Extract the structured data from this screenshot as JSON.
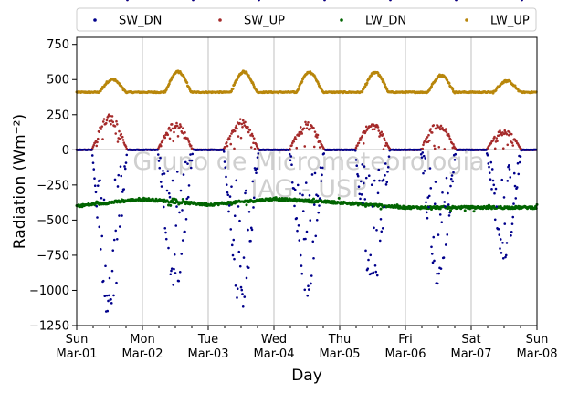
{
  "chart_data": {
    "type": "scatter",
    "title": "",
    "xlabel": "Day",
    "ylabel": "Radiation (Wm⁻²)",
    "ylim": [
      -1250,
      800
    ],
    "yticks": [
      -1250,
      -1000,
      -750,
      -500,
      -250,
      0,
      250,
      500,
      750
    ],
    "ytick_labels": [
      "−1250",
      "−1000",
      "−750",
      "−500",
      "−250",
      "0",
      "250",
      "500",
      "750"
    ],
    "xlim": [
      "2015-03-01",
      "2015-03-08"
    ],
    "xticks": [
      {
        "day": "Sun",
        "date": "Mar-01"
      },
      {
        "day": "Mon",
        "date": "Mar-02"
      },
      {
        "day": "Tue",
        "date": "Mar-03"
      },
      {
        "day": "Wed",
        "date": "Mar-04"
      },
      {
        "day": "Thu",
        "date": "Mar-05"
      },
      {
        "day": "Fri",
        "date": "Mar-06"
      },
      {
        "day": "Sat",
        "date": "Mar-07"
      },
      {
        "day": "Sun",
        "date": "Mar-08"
      }
    ],
    "grid": "vertical",
    "legend": {
      "placement": "top",
      "ncol": 4
    },
    "watermark": [
      "Grupo de Micrometeorologia",
      "IAG - USP"
    ],
    "series": [
      {
        "name": "SW_DN",
        "color": "#00008b",
        "daily_peak": [
          -1230,
          -1010,
          -1150,
          -1040,
          -1000,
          -990,
          -790
        ],
        "x": [
          "2015-03-01T11:00",
          "2015-03-01T12:00",
          "2015-03-01T13:00",
          "2015-03-01T14:00",
          "2015-03-02T12:00",
          "2015-03-02T15:00",
          "2015-03-03T12:00",
          "2015-03-04T12:00",
          "2015-03-05T12:00",
          "2015-03-06T12:00",
          "2015-03-07T12:00"
        ],
        "y": [
          -300,
          -520,
          -1230,
          -650,
          -1000,
          -950,
          -1150,
          -1040,
          -1000,
          -990,
          -790
        ]
      },
      {
        "name": "SW_UP",
        "color": "#a52a2a",
        "daily_peak": [
          240,
          195,
          210,
          190,
          190,
          190,
          140
        ],
        "x": [
          "2015-03-01T12:00",
          "2015-03-02T12:00",
          "2015-03-03T12:00",
          "2015-03-04T12:00",
          "2015-03-05T12:00",
          "2015-03-06T12:00",
          "2015-03-07T12:00"
        ],
        "y": [
          240,
          195,
          210,
          190,
          190,
          190,
          140
        ]
      },
      {
        "name": "LW_DN",
        "color": "#006400",
        "baseline": -400,
        "x": [
          "2015-03-01T00:00",
          "2015-03-02T00:00",
          "2015-03-03T00:00",
          "2015-03-04T00:00",
          "2015-03-05T00:00",
          "2015-03-06T00:00",
          "2015-03-07T00:00",
          "2015-03-08T00:00"
        ],
        "y": [
          -400,
          -350,
          -390,
          -350,
          -375,
          -410,
          -410,
          -410
        ]
      },
      {
        "name": "LW_UP",
        "color": "#b8860b",
        "baseline": 410,
        "daily_peak": [
          500,
          555,
          555,
          550,
          550,
          530,
          490
        ],
        "x": [
          "2015-03-01T00:00",
          "2015-03-01T14:00",
          "2015-03-02T14:00",
          "2015-03-03T14:00",
          "2015-03-04T14:00",
          "2015-03-05T14:00",
          "2015-03-06T14:00",
          "2015-03-07T14:00"
        ],
        "y": [
          410,
          500,
          555,
          555,
          550,
          550,
          530,
          490
        ]
      }
    ]
  }
}
